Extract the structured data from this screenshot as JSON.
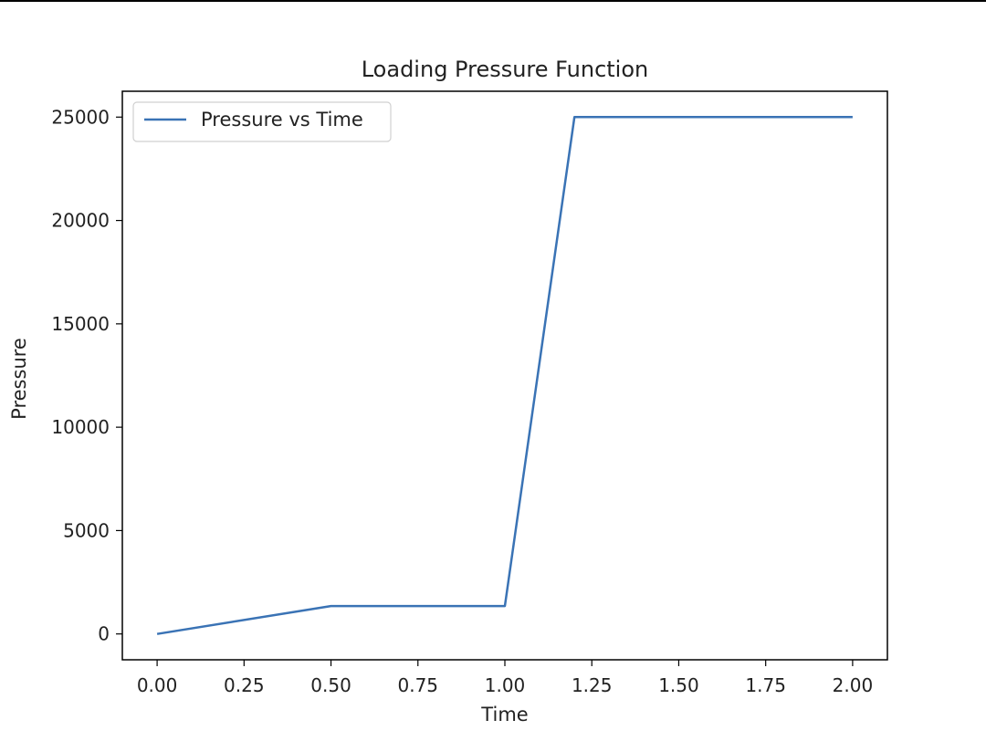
{
  "chart_data": {
    "type": "line",
    "title": "Loading Pressure Function",
    "xlabel": "Time",
    "ylabel": "Pressure",
    "xlim": [
      -0.1,
      2.1
    ],
    "ylim": [
      -1250,
      26250
    ],
    "xticks": [
      0.0,
      0.25,
      0.5,
      0.75,
      1.0,
      1.25,
      1.5,
      1.75,
      2.0
    ],
    "xtick_labels": [
      "0.00",
      "0.25",
      "0.50",
      "0.75",
      "1.00",
      "1.25",
      "1.50",
      "1.75",
      "2.00"
    ],
    "yticks": [
      0,
      5000,
      10000,
      15000,
      20000,
      25000
    ],
    "ytick_labels": [
      "0",
      "5000",
      "10000",
      "15000",
      "20000",
      "25000"
    ],
    "grid": false,
    "legend_position": "top-left",
    "series": [
      {
        "name": "Pressure vs Time",
        "color": "#3a73b5",
        "x": [
          0.0,
          0.5,
          1.0,
          1.2,
          2.0
        ],
        "y": [
          0,
          1350,
          1350,
          25000,
          25000
        ]
      }
    ]
  }
}
